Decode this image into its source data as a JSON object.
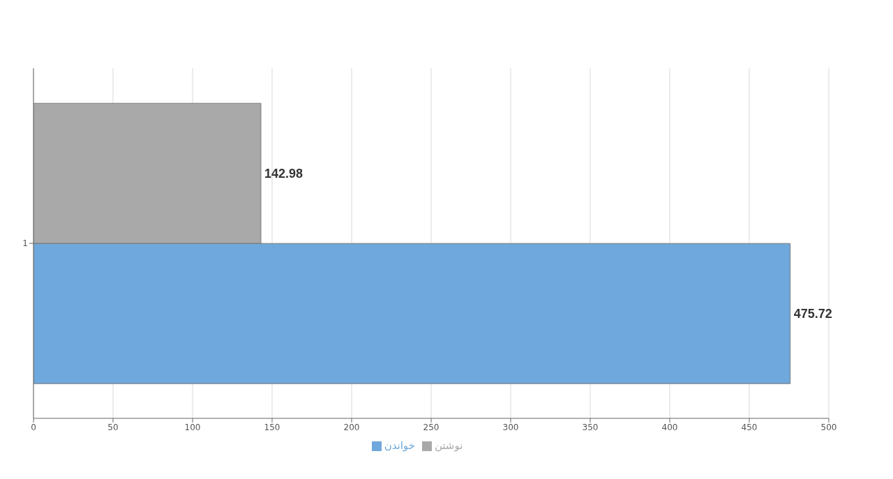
{
  "chart_data": {
    "type": "bar",
    "orientation": "horizontal",
    "categories": [
      "1"
    ],
    "series": [
      {
        "name": "نوشتن",
        "color": "#a9a9a9",
        "values": [
          142.98
        ]
      },
      {
        "name": "خواندن",
        "color": "#6fa8dc",
        "values": [
          475.72
        ]
      }
    ],
    "xlim": [
      0,
      500
    ],
    "xticks": [
      0,
      50,
      100,
      150,
      200,
      250,
      300,
      350,
      400,
      450,
      500
    ],
    "grid": "x",
    "legend": "bottom",
    "data_labels": true
  }
}
